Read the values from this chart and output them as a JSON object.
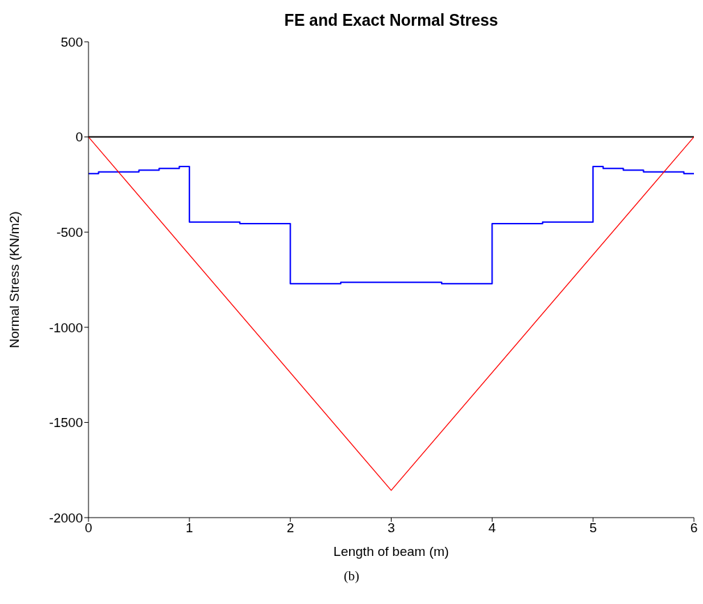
{
  "chart_data": {
    "type": "step",
    "title": "FE and Exact Normal Stress",
    "xlabel": "Length of beam (m)",
    "ylabel": "Normal Stress (KN/m2)",
    "annotations": [
      "(b)"
    ],
    "series": [
      {
        "color": "#0000ff",
        "x": [
          0,
          0.1,
          0.5,
          0.7,
          0.9,
          1,
          1.5,
          2,
          2.5,
          3.5,
          4,
          4.5,
          5,
          5.1,
          5.3,
          5.5,
          5.9,
          6
        ],
        "values": [
          -193,
          -184,
          -174,
          -165,
          -155,
          -447,
          -455,
          -771,
          -764,
          -771,
          -455,
          -447,
          -155,
          -165,
          -174,
          -184,
          -193,
          -193
        ]
      },
      {
        "type": "line",
        "color": "#ff0000",
        "x": [
          0,
          3,
          6
        ],
        "values": [
          0,
          -1857,
          0
        ]
      }
    ],
    "ref_lines": [
      {
        "axis": "y",
        "value": 0,
        "color": "#000000"
      }
    ],
    "xlim": [
      0,
      6
    ],
    "xticks": [
      0,
      1,
      2,
      3,
      4,
      5,
      6
    ],
    "ylim": [
      -2000,
      500
    ],
    "yticks": [
      -2000,
      -1500,
      -1000,
      -500,
      0,
      500
    ],
    "legend": false
  }
}
